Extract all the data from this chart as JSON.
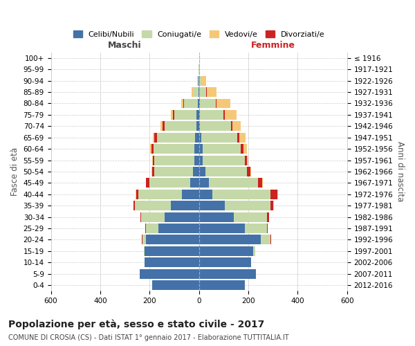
{
  "age_groups": [
    "0-4",
    "5-9",
    "10-14",
    "15-19",
    "20-24",
    "25-29",
    "30-34",
    "35-39",
    "40-44",
    "45-49",
    "50-54",
    "55-59",
    "60-64",
    "65-69",
    "70-74",
    "75-79",
    "80-84",
    "85-89",
    "90-94",
    "95-99",
    "100+"
  ],
  "birth_years": [
    "2012-2016",
    "2007-2011",
    "2002-2006",
    "1997-2001",
    "1992-1996",
    "1987-1991",
    "1982-1986",
    "1977-1981",
    "1972-1976",
    "1967-1971",
    "1962-1966",
    "1957-1961",
    "1952-1956",
    "1947-1951",
    "1942-1946",
    "1937-1941",
    "1932-1936",
    "1927-1931",
    "1922-1926",
    "1917-1921",
    "≤ 1916"
  ],
  "males": {
    "celibe": [
      190,
      240,
      220,
      220,
      215,
      165,
      140,
      115,
      70,
      35,
      25,
      20,
      18,
      15,
      10,
      10,
      5,
      3,
      1,
      0,
      0
    ],
    "coniugato": [
      0,
      0,
      1,
      3,
      15,
      50,
      95,
      145,
      175,
      165,
      155,
      160,
      165,
      155,
      130,
      90,
      55,
      20,
      5,
      1,
      0
    ],
    "vedovo": [
      0,
      0,
      0,
      0,
      0,
      0,
      0,
      1,
      1,
      1,
      2,
      2,
      4,
      6,
      8,
      8,
      10,
      5,
      2,
      1,
      0
    ],
    "divorziato": [
      0,
      0,
      0,
      0,
      1,
      2,
      3,
      4,
      10,
      14,
      10,
      8,
      10,
      10,
      8,
      5,
      3,
      2,
      0,
      0,
      0
    ]
  },
  "females": {
    "nubile": [
      185,
      230,
      210,
      220,
      250,
      185,
      140,
      105,
      55,
      40,
      25,
      15,
      15,
      10,
      5,
      5,
      3,
      2,
      1,
      0,
      0
    ],
    "coniugata": [
      0,
      1,
      2,
      8,
      40,
      90,
      135,
      185,
      235,
      200,
      170,
      170,
      155,
      145,
      125,
      95,
      65,
      28,
      8,
      2,
      0
    ],
    "vedova": [
      0,
      0,
      0,
      0,
      0,
      0,
      0,
      1,
      2,
      3,
      5,
      8,
      15,
      25,
      35,
      48,
      55,
      38,
      20,
      3,
      1
    ],
    "divorziata": [
      0,
      0,
      0,
      0,
      1,
      3,
      8,
      12,
      28,
      15,
      12,
      8,
      10,
      8,
      5,
      5,
      3,
      2,
      0,
      0,
      0
    ]
  },
  "colors": {
    "celibe_nubile": "#4472a8",
    "coniugato_coniugata": "#c5d9a8",
    "vedovo_vedova": "#f5c878",
    "divorziato_divorziata": "#cc2222"
  },
  "xlim": 600,
  "title": "Popolazione per età, sesso e stato civile - 2017",
  "subtitle": "COMUNE DI CROSIA (CS) - Dati ISTAT 1° gennaio 2017 - Elaborazione TUTTITALIA.IT",
  "xlabel_left": "Maschi",
  "xlabel_right": "Femmine",
  "ylabel_left": "Fasce di età",
  "ylabel_right": "Anni di nascita",
  "legend_labels": [
    "Celibi/Nubili",
    "Coniugati/e",
    "Vedovi/e",
    "Divorziati/e"
  ],
  "bg_color": "#ffffff",
  "grid_color": "#cccccc"
}
